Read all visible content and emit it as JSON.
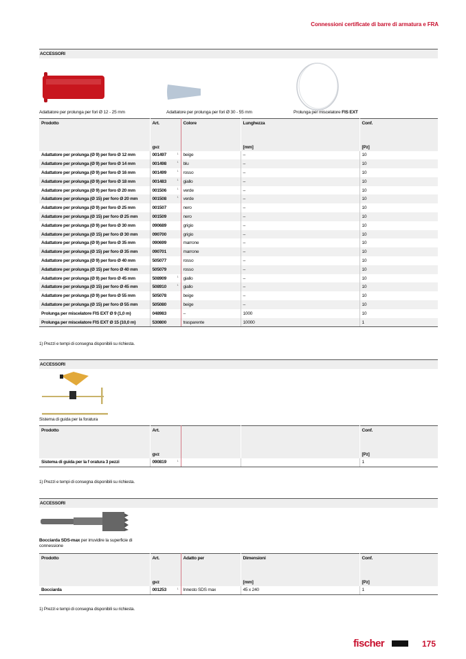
{
  "header": {
    "title": "Connessioni certificate di barre di armatura e FRA"
  },
  "sections": [
    {
      "band": "ACCESSORI",
      "captions": [
        {
          "pre": "Adattatore per prolunga per fori Ø 12 - 25 mm",
          "bold": ""
        },
        {
          "pre": "Adattatore per prolunga per fori Ø 30 - 55 mm",
          "bold": ""
        },
        {
          "pre": "Prolunga per miscelatore ",
          "bold": "FIS EXT"
        }
      ],
      "columns": [
        {
          "label": "Prodotto",
          "unit": ""
        },
        {
          "label": "Art.",
          "unit": "gvz"
        },
        {
          "label": "Colore",
          "unit": ""
        },
        {
          "label": "Lunghezza",
          "unit": "[mm]"
        },
        {
          "label": "Conf.",
          "unit": "[Pz]"
        }
      ],
      "rows": [
        [
          "Adattatore per prolunga (Ø 9) per foro Ø 12 mm",
          "001497",
          "1)",
          "beige",
          "–",
          "10"
        ],
        [
          "Adattatore per prolunga (Ø 9) per foro Ø 14 mm",
          "001498",
          "1)",
          "blu",
          "–",
          "10"
        ],
        [
          "Adattatore per prolunga (Ø 9) per foro Ø 16 mm",
          "001499",
          "1)",
          "rosso",
          "–",
          "10"
        ],
        [
          "Adattatore per prolunga (Ø 9) per foro Ø 18 mm",
          "001483",
          "1)",
          "giallo",
          "–",
          "10"
        ],
        [
          "Adattatore per prolunga (Ø 9) per foro Ø 20 mm",
          "001506",
          "1)",
          "verde",
          "–",
          "10"
        ],
        [
          "Adattatore per prolunga (Ø 15) per foro Ø 20 mm",
          "001508",
          "1)",
          "verde",
          "–",
          "10"
        ],
        [
          "Adattatore per prolunga (Ø 9) per foro Ø 25 mm",
          "001507",
          "",
          "nero",
          "–",
          "10"
        ],
        [
          "Adattatore per prolunga (Ø 15) per foro Ø 25 mm",
          "001509",
          "",
          "nero",
          "–",
          "10"
        ],
        [
          "Adattatore per prolunga (Ø 9) per foro Ø 30 mm",
          "090689",
          "",
          "grigio",
          "–",
          "10"
        ],
        [
          "Adattatore per prolunga (Ø 15) per foro Ø 30 mm",
          "090700",
          "",
          "grigio",
          "–",
          "10"
        ],
        [
          "Adattatore per prolunga (Ø 9) per foro Ø 35 mm",
          "090699",
          "",
          "marrone",
          "–",
          "10"
        ],
        [
          "Adattatore per prolunga (Ø 15) per foro Ø 35 mm",
          "090701",
          "",
          "marrone",
          "–",
          "10"
        ],
        [
          "Adattatore per prolunga (Ø 9) per foro Ø 40 mm",
          "505077",
          "",
          "rosso",
          "–",
          "10"
        ],
        [
          "Adattatore per prolunga (Ø 15) per foro Ø 40 mm",
          "505079",
          "",
          "rosso",
          "–",
          "10"
        ],
        [
          "Adattatore per prolunga (Ø 9) per foro Ø 45 mm",
          "508909",
          "1)",
          "giallo",
          "–",
          "10"
        ],
        [
          "Adattatore per prolunga (Ø 15) per foro Ø 45 mm",
          "508910",
          "1)",
          "giallo",
          "–",
          "10"
        ],
        [
          "Adattatore per prolunga (Ø 9) per foro Ø 55 mm",
          "505078",
          "",
          "beige",
          "–",
          "10"
        ],
        [
          "Adattatore per prolunga (Ø 15) per foro Ø 55 mm",
          "505080",
          "",
          "beige",
          "–",
          "10"
        ],
        [
          "Prolunga per miscelatore FIS EXT Ø 9 (1,0 m)",
          "048983",
          "",
          "–",
          "1000",
          "10"
        ],
        [
          "Prolunga per miscelatore FIS EXT Ø 15 (10,0 m)",
          "530800",
          "",
          "trasparente",
          "10000",
          "1"
        ]
      ],
      "footnote": "1)  Prezzi e tempi di consegna disponibili su richiesta."
    },
    {
      "band": "ACCESSORI",
      "captions": [
        {
          "pre": "Sistema di guida per la foratura",
          "bold": ""
        }
      ],
      "columns": [
        {
          "label": "Prodotto",
          "unit": ""
        },
        {
          "label": "Art.",
          "unit": "gvz"
        },
        {
          "label": "",
          "unit": ""
        },
        {
          "label": "",
          "unit": ""
        },
        {
          "label": "Conf.",
          "unit": "[Pz]"
        }
      ],
      "rows": [
        [
          "Sistema di guida per la f oratura 3 pezzi",
          "090819",
          "1)",
          "",
          "",
          "1"
        ]
      ],
      "footnote": "1)  Prezzi e tempi di consegna disponibili su richiesta."
    },
    {
      "band": "ACCESSORI",
      "captions": [
        {
          "pre": " per irruvidire la superficie di connessione",
          "bold": "Bocciarda SDS-max"
        }
      ],
      "columns": [
        {
          "label": "Prodotto",
          "unit": ""
        },
        {
          "label": "Art.",
          "unit": "gvz"
        },
        {
          "label": "Adatto per",
          "unit": ""
        },
        {
          "label": "Dimensioni",
          "unit": "[mm]"
        },
        {
          "label": "Conf.",
          "unit": "[Pz]"
        }
      ],
      "rows": [
        [
          "Bocciarda",
          "001253",
          "1)",
          "Innesto SDS max",
          "45 x 240",
          "1"
        ]
      ],
      "footnote": "1)  Prezzi e tempi di consegna disponibili su richiesta."
    }
  ],
  "footer": {
    "brand": "fischer",
    "page": "175",
    "brand_color": "#c8102e"
  }
}
